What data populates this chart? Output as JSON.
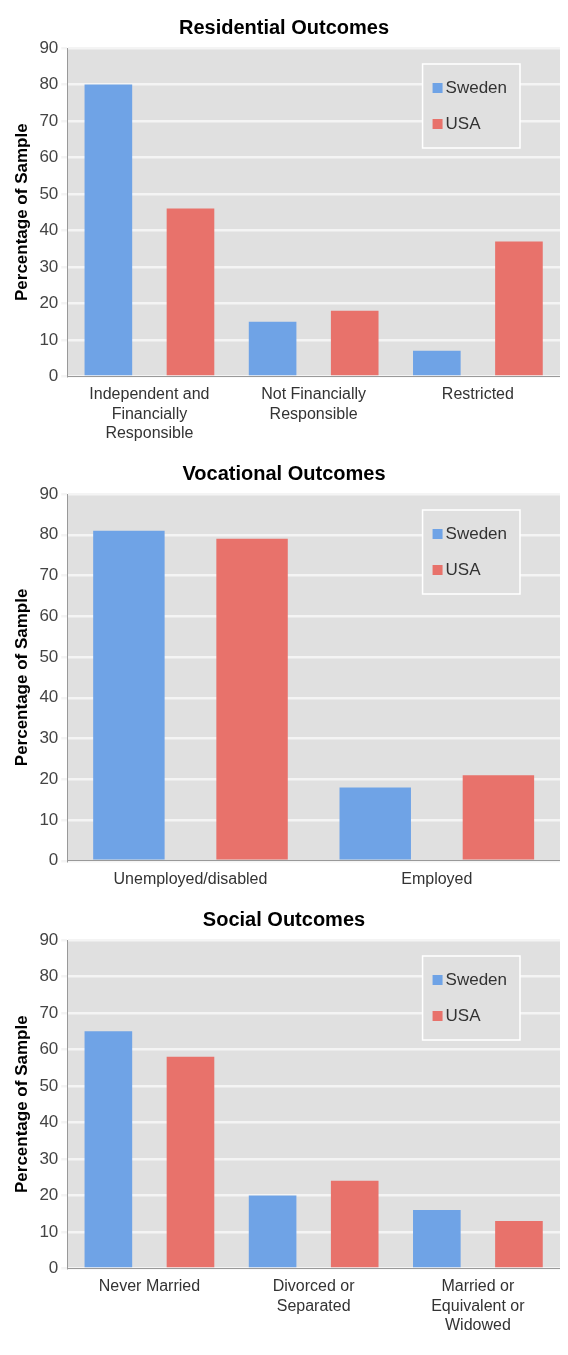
{
  "chart_data": [
    {
      "type": "bar",
      "title": "Residential Outcomes",
      "ylabel": "Percentage of Sample",
      "categories": [
        "Independent and Financially Responsible",
        "Not Financially Responsible",
        "Restricted"
      ],
      "series": [
        {
          "name": "Sweden",
          "color": "#6fa3e6",
          "values": [
            80,
            15,
            7
          ]
        },
        {
          "name": "USA",
          "color": "#e8726b",
          "values": [
            46,
            18,
            37
          ]
        }
      ],
      "ylim": [
        0,
        90
      ],
      "yticks": [
        0,
        10,
        20,
        30,
        40,
        50,
        60,
        70,
        80,
        90
      ],
      "grid": "y",
      "legend": "top right"
    },
    {
      "type": "bar",
      "title": "Vocational Outcomes",
      "ylabel": "Percentage of Sample",
      "categories": [
        "Unemployed/disabled",
        "Employed"
      ],
      "series": [
        {
          "name": "Sweden",
          "color": "#6fa3e6",
          "values": [
            81,
            18
          ]
        },
        {
          "name": "USA",
          "color": "#e8726b",
          "values": [
            79,
            21
          ]
        }
      ],
      "ylim": [
        0,
        90
      ],
      "yticks": [
        0,
        10,
        20,
        30,
        40,
        50,
        60,
        70,
        80,
        90
      ],
      "grid": "y",
      "legend": "top right"
    },
    {
      "type": "bar",
      "title": "Social Outcomes",
      "ylabel": "Percentage of Sample",
      "categories": [
        "Never Married",
        "Divorced or Separated",
        "Married or Equivalent or Widowed"
      ],
      "series": [
        {
          "name": "Sweden",
          "color": "#6fa3e6",
          "values": [
            65,
            20,
            16
          ]
        },
        {
          "name": "USA",
          "color": "#e8726b",
          "values": [
            58,
            24,
            13
          ]
        }
      ],
      "ylim": [
        0,
        90
      ],
      "yticks": [
        0,
        10,
        20,
        30,
        40,
        50,
        60,
        70,
        80,
        90
      ],
      "grid": "y",
      "legend": "top right"
    }
  ]
}
